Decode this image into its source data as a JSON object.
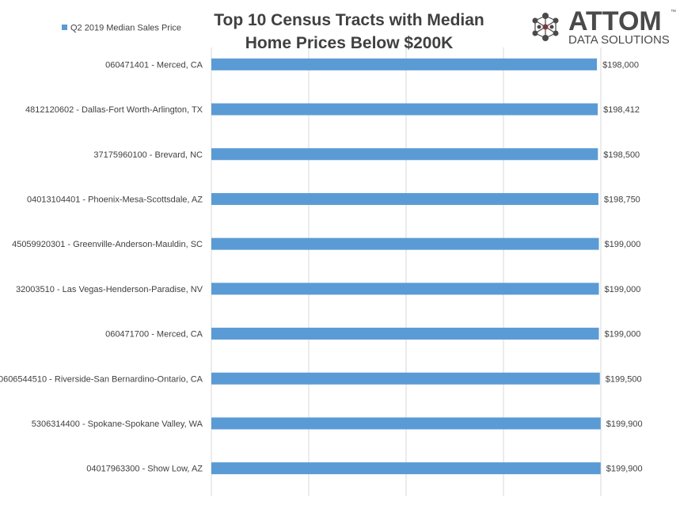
{
  "brand": {
    "name": "ATTOM",
    "tagline": "DATA SOLUTIONS",
    "trademark": "™",
    "icon": "atom-network-icon",
    "color": "#4a4a4a",
    "accent_color": "#c0272d"
  },
  "chart_data": {
    "type": "bar",
    "orientation": "horizontal",
    "title_lines": [
      "Top 10 Census Tracts with Median",
      "Home Prices Below $200K"
    ],
    "legend": {
      "position": "top-left",
      "entries": [
        "Q2 2019 Median Sales Price"
      ]
    },
    "categories": [
      "060471401 - Merced, CA",
      "4812120602 - Dallas-Fort Worth-Arlington, TX",
      "37175960100 - Brevard, NC",
      "04013104401 - Phoenix-Mesa-Scottsdale, AZ",
      "45059920301 - Greenville-Anderson-Mauldin, SC",
      "32003510 - Las Vegas-Henderson-Paradise, NV",
      "060471700 - Merced, CA",
      "0606544510 - Riverside-San Bernardino-Ontario, CA",
      "5306314400 - Spokane-Spokane Valley, WA",
      "04017963300 - Show Low, AZ"
    ],
    "series": [
      {
        "name": "Q2 2019 Median Sales Price",
        "color": "#5b9bd5",
        "values": [
          198000,
          198412,
          198500,
          198750,
          199000,
          199000,
          199000,
          199500,
          199900,
          199900
        ]
      }
    ],
    "data_labels": [
      "$198,000",
      "$198,412",
      "$198,500",
      "$198,750",
      "$199,000",
      "$199,000",
      "$199,000",
      "$199,500",
      "$199,900",
      "$199,900"
    ],
    "xlim": [
      0,
      200000
    ],
    "grid": true,
    "axis_tick_labels_shown": false
  }
}
